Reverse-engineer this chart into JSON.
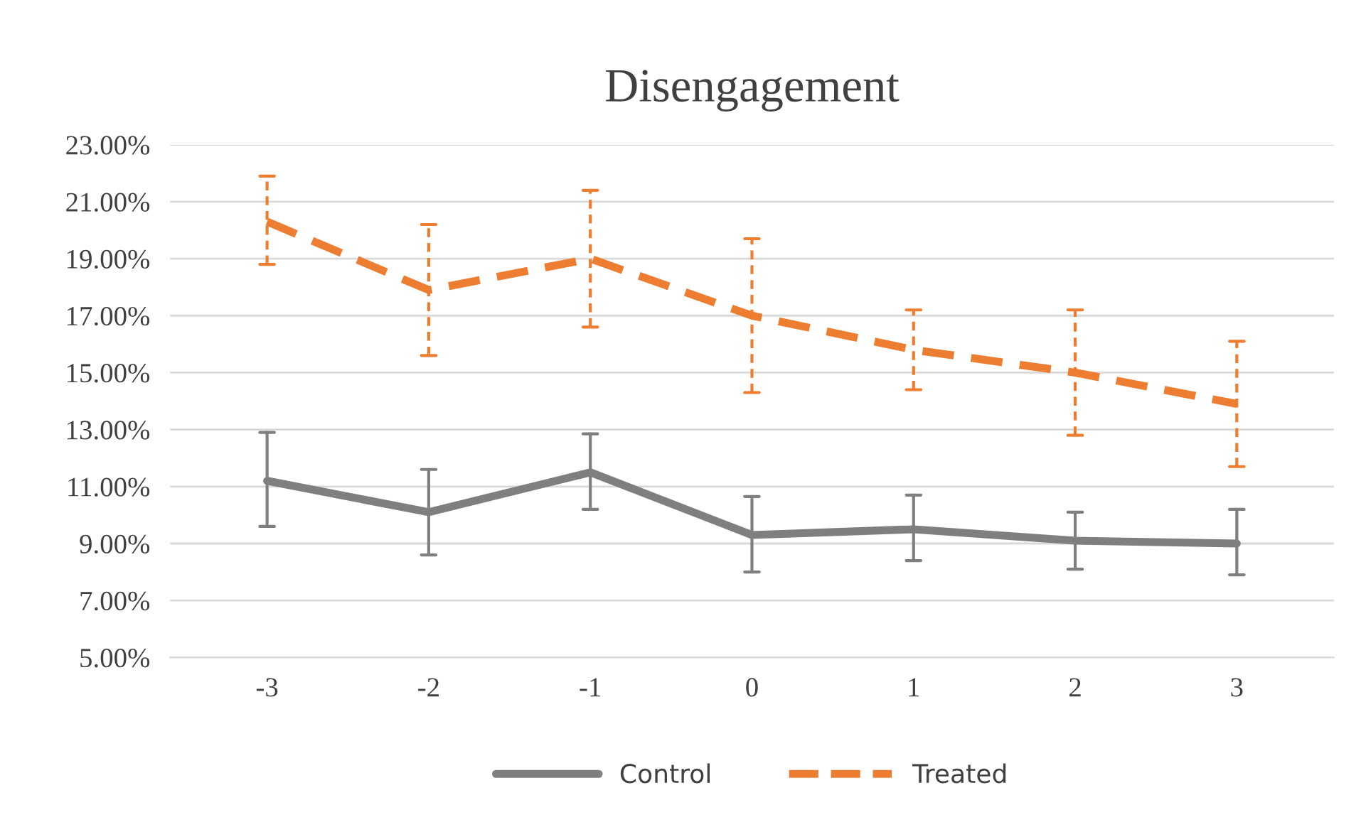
{
  "chart_data": {
    "type": "line",
    "title": "Disengagement",
    "categories": [
      "-3",
      "-2",
      "-1",
      "0",
      "1",
      "2",
      "3"
    ],
    "series": [
      {
        "name": "Control",
        "color": "#7f7f7f",
        "line_style": "solid",
        "values": [
          11.2,
          10.1,
          11.5,
          9.3,
          9.5,
          9.1,
          9.0
        ],
        "errors": [
          [
            9.6,
            12.9
          ],
          [
            8.6,
            11.6
          ],
          [
            10.2,
            12.85
          ],
          [
            8.0,
            10.65
          ],
          [
            8.4,
            10.7
          ],
          [
            8.1,
            10.1
          ],
          [
            7.9,
            10.2
          ]
        ]
      },
      {
        "name": "Treated",
        "color": "#ed7d31",
        "line_style": "dashed",
        "values": [
          20.3,
          17.9,
          19.0,
          17.0,
          15.8,
          15.0,
          13.9
        ],
        "errors": [
          [
            18.8,
            21.9
          ],
          [
            15.6,
            20.2
          ],
          [
            16.6,
            21.4
          ],
          [
            14.3,
            19.7
          ],
          [
            14.4,
            17.2
          ],
          [
            12.8,
            17.2
          ],
          [
            11.7,
            16.1
          ]
        ]
      }
    ],
    "ylim": [
      5,
      23
    ],
    "yticks": [
      {
        "value": 5,
        "label": "5.00%"
      },
      {
        "value": 7,
        "label": "7.00%"
      },
      {
        "value": 9,
        "label": "9.00%"
      },
      {
        "value": 11,
        "label": "11.00%"
      },
      {
        "value": 13,
        "label": "13.00%"
      },
      {
        "value": 15,
        "label": "15.00%"
      },
      {
        "value": 17,
        "label": "17.00%"
      },
      {
        "value": 19,
        "label": "19.00%"
      },
      {
        "value": 21,
        "label": "21.00%"
      },
      {
        "value": 23,
        "label": "23.00%"
      }
    ],
    "grid": "y",
    "legend": "bottom",
    "marker": "none"
  }
}
